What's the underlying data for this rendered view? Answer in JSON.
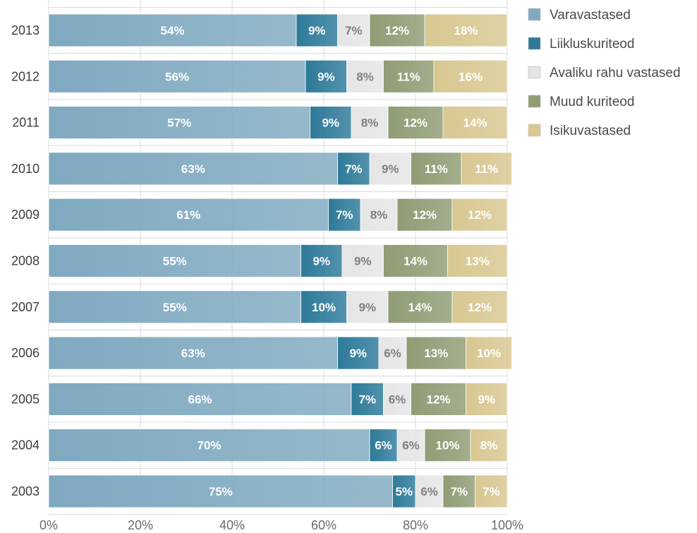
{
  "chart_data": {
    "type": "bar",
    "orientation": "horizontal",
    "stacked": "percent",
    "categories": [
      "2013",
      "2012",
      "2011",
      "2010",
      "2009",
      "2008",
      "2007",
      "2006",
      "2005",
      "2004",
      "2003"
    ],
    "series": [
      {
        "name": "Varavastased",
        "color": "#7fa9c0",
        "label_color": "#ffffff",
        "values": [
          54,
          56,
          57,
          63,
          61,
          55,
          55,
          63,
          66,
          70,
          75
        ]
      },
      {
        "name": "Liikluskuriteod",
        "color": "#2d7a99",
        "label_color": "#ffffff",
        "values": [
          9,
          9,
          9,
          7,
          7,
          9,
          10,
          9,
          7,
          6,
          5
        ]
      },
      {
        "name": "Avaliku rahu vastased",
        "color": "#e5e5e5",
        "label_color": "#808080",
        "values": [
          7,
          8,
          8,
          9,
          8,
          9,
          9,
          6,
          6,
          6,
          6
        ]
      },
      {
        "name": "Muud kuriteod",
        "color": "#8f9c74",
        "label_color": "#ffffff",
        "values": [
          12,
          11,
          12,
          11,
          12,
          14,
          14,
          13,
          12,
          10,
          7
        ]
      },
      {
        "name": "Isikuvastased",
        "color": "#d8c791",
        "label_color": "#ffffff",
        "values": [
          18,
          16,
          14,
          11,
          12,
          13,
          12,
          10,
          9,
          8,
          7
        ]
      }
    ],
    "x_ticks": [
      "0%",
      "20%",
      "40%",
      "60%",
      "80%",
      "100%"
    ],
    "xlim": [
      0,
      100
    ],
    "grid": true,
    "legend_position": "right-top"
  }
}
